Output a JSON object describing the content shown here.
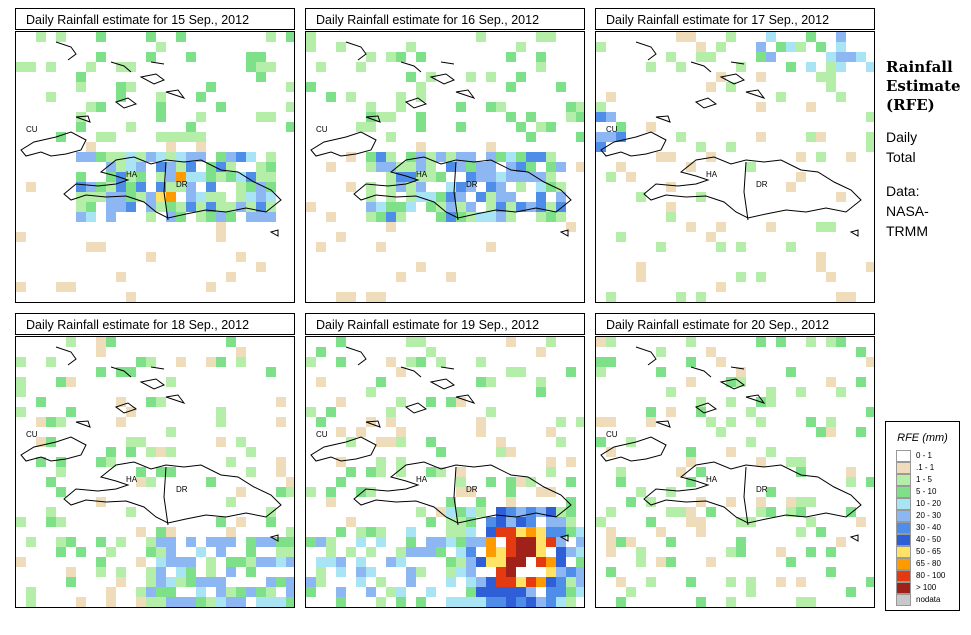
{
  "panels": [
    {
      "title": "Daily Rainfall estimate for  15 Sep., 2012",
      "intensity": "moderate-hispaniola"
    },
    {
      "title": "Daily Rainfall estimate for  16 Sep., 2012",
      "intensity": "moderate-hispaniola"
    },
    {
      "title": "Daily Rainfall estimate for  17 Sep., 2012",
      "intensity": "light"
    },
    {
      "title": "Daily Rainfall estimate for  18 Sep., 2012",
      "intensity": "southern-band"
    },
    {
      "title": "Daily Rainfall estimate for  19 Sep., 2012",
      "intensity": "heavy-south"
    },
    {
      "title": "Daily Rainfall estimate for  20 Sep., 2012",
      "intensity": "scattered"
    }
  ],
  "map_labels": {
    "cuba": "CU",
    "haiti": "HA",
    "dominican_republic": "DR"
  },
  "sidebar": {
    "heading": [
      "Rainfall",
      "Estimate",
      "(RFE)"
    ],
    "period": [
      "Daily",
      "Total"
    ],
    "source": [
      "Data:",
      "NASA-",
      "TRMM"
    ]
  },
  "legend": {
    "title": "RFE (mm)",
    "classes": [
      {
        "label": "0 - 1",
        "color": "#ffffff"
      },
      {
        "label": ".1 - 1",
        "color": "#efdcba"
      },
      {
        "label": "1 - 5",
        "color": "#b4eea8"
      },
      {
        "label": "5 - 10",
        "color": "#7fe08a"
      },
      {
        "label": "10 - 20",
        "color": "#a8e4f4"
      },
      {
        "label": "20 - 30",
        "color": "#8cb7f2"
      },
      {
        "label": "30 - 40",
        "color": "#4f8ee8"
      },
      {
        "label": "40 - 50",
        "color": "#2e5fd6"
      },
      {
        "label": "50 - 65",
        "color": "#ffe266"
      },
      {
        "label": "65 - 80",
        "color": "#ff9a00"
      },
      {
        "label": "80 - 100",
        "color": "#e33a12"
      },
      {
        "label": "> 100",
        "color": "#a0201a"
      },
      {
        "label": "nodata",
        "color": "#c8c8c8"
      }
    ]
  }
}
